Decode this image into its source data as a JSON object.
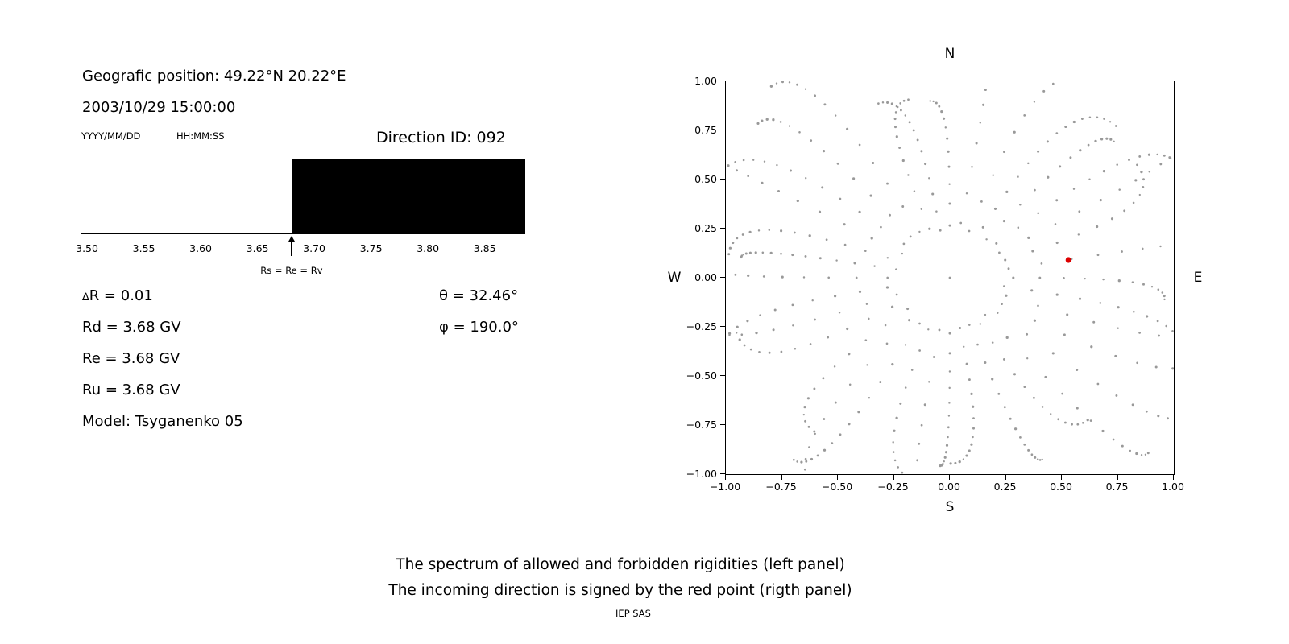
{
  "page": {
    "background": "#ffffff",
    "caption_line1": "The spectrum of allowed and forbidden rigidities (left panel)",
    "caption_line2": "The incoming direction is signed by the red point (rigth panel)",
    "credit": "IEP SAS"
  },
  "left_panel": {
    "geo_position": "Geografic position: 49.22°N 20.22°E",
    "datetime": "2003/10/29 15:00:00",
    "date_format_label": "YYYY/MM/DD",
    "time_format_label": "HH:MM:SS",
    "direction_id_label": "Direction ID: 092",
    "delta_r_symbol": "∆",
    "delta_r_text": "R = 0.01",
    "rd": "Rd = 3.68 GV",
    "re": "Re = 3.68 GV",
    "ru": "Ru = 3.68 GV",
    "model": "Model: Tsyganenko 05",
    "theta": "θ = 32.46°",
    "phi": "φ = 190.0°"
  },
  "chart_data": [
    {
      "name": "rigidity-spectrum",
      "type": "bar",
      "title": "",
      "xlim": [
        3.495,
        3.885
      ],
      "x_ticks": [
        3.5,
        3.55,
        3.6,
        3.65,
        3.7,
        3.75,
        3.8,
        3.85
      ],
      "x_tick_labels": [
        "3.50",
        "3.55",
        "3.60",
        "3.65",
        "3.70",
        "3.75",
        "3.80",
        "3.85"
      ],
      "regions": [
        {
          "label": "allowed",
          "from": 3.495,
          "to": 3.68,
          "color": "#ffffff"
        },
        {
          "label": "forbidden",
          "from": 3.68,
          "to": 3.885,
          "color": "#000000"
        }
      ],
      "arrow": {
        "x": 3.68,
        "label": "Rs = Re = Rv"
      },
      "values": {
        "delta_R_GV": 0.01,
        "Rd_GV": 3.68,
        "Re_GV": 3.68,
        "Ru_GV": 3.68,
        "model": "Tsyganenko 05",
        "theta_deg": 32.46,
        "phi_deg": 190.0
      }
    },
    {
      "name": "incoming-direction-map",
      "type": "scatter",
      "xlim": [
        -1,
        1
      ],
      "ylim": [
        -1,
        1
      ],
      "grid": false,
      "legend": false,
      "x_ticks": [
        -1,
        -0.75,
        -0.5,
        -0.25,
        0,
        0.25,
        0.5,
        0.75,
        1
      ],
      "x_tick_labels": [
        "−1.00",
        "−0.75",
        "−0.50",
        "−0.25",
        "0.00",
        "0.25",
        "0.50",
        "0.75",
        "1.00"
      ],
      "y_ticks": [
        1,
        0.75,
        0.5,
        0.25,
        0,
        -0.25,
        -0.5,
        -0.75,
        -1
      ],
      "y_tick_labels": [
        "1.00",
        "0.75",
        "0.50",
        "0.25",
        "0.00",
        "−0.25",
        "−0.50",
        "−0.75",
        "−1.00"
      ],
      "compass": {
        "top": "N",
        "bottom": "S",
        "left": "W",
        "right": "E"
      },
      "dot_color": "#999999",
      "spokes": {
        "count": 36,
        "inner_radius": 0.27,
        "outer_radius": 1.12,
        "points_per_spoke": 13
      },
      "center_point": [
        0,
        0
      ],
      "red_point": {
        "x": 0.53,
        "y": 0.09,
        "color": "#dd0000"
      }
    }
  ]
}
